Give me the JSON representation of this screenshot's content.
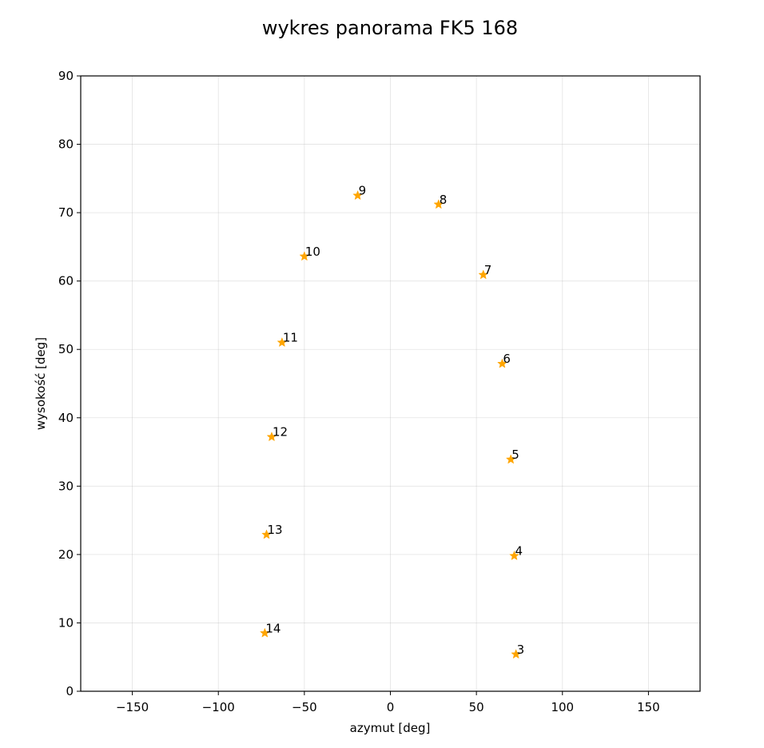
{
  "chart_data": {
    "type": "scatter",
    "title": "wykres panorama FK5 168",
    "xlabel": "azymut [deg]",
    "ylabel": "wysokość [deg]",
    "xlim": [
      -180,
      180
    ],
    "ylim": [
      0,
      90
    ],
    "xticks": [
      -150,
      -100,
      -50,
      0,
      50,
      100,
      150
    ],
    "xtick_labels": [
      "−150",
      "−100",
      "−50",
      "0",
      "50",
      "100",
      "150"
    ],
    "yticks": [
      0,
      10,
      20,
      30,
      40,
      50,
      60,
      70,
      80,
      90
    ],
    "ytick_labels": [
      "0",
      "10",
      "20",
      "30",
      "40",
      "50",
      "60",
      "70",
      "80",
      "90"
    ],
    "grid": true,
    "marker": "star",
    "marker_color": "#ffa500",
    "points": [
      {
        "label": "3",
        "x": 73,
        "y": 5.4
      },
      {
        "label": "4",
        "x": 72,
        "y": 19.8
      },
      {
        "label": "5",
        "x": 70,
        "y": 33.9
      },
      {
        "label": "6",
        "x": 65,
        "y": 47.9
      },
      {
        "label": "7",
        "x": 54,
        "y": 60.9
      },
      {
        "label": "8",
        "x": 28,
        "y": 71.2
      },
      {
        "label": "9",
        "x": -19,
        "y": 72.5
      },
      {
        "label": "10",
        "x": -50,
        "y": 63.6
      },
      {
        "label": "11",
        "x": -63,
        "y": 51
      },
      {
        "label": "12",
        "x": -69,
        "y": 37.2
      },
      {
        "label": "13",
        "x": -72,
        "y": 22.9
      },
      {
        "label": "14",
        "x": -73,
        "y": 8.5
      }
    ]
  }
}
